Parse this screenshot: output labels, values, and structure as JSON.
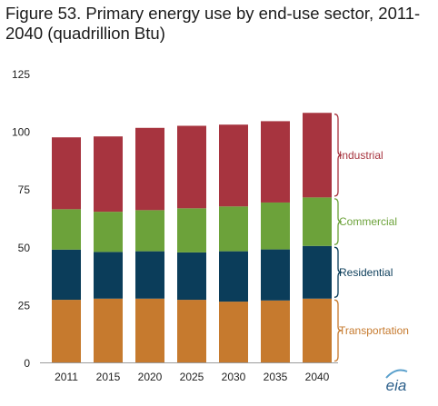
{
  "figure_title": "Figure 53. Primary energy use by end-use sector, 2011-2040 (quadrillion Btu)",
  "logo_text": "eia",
  "colors": {
    "transportation": "#c67a2e",
    "residential": "#0b3d5a",
    "commercial": "#6ca23a",
    "industrial": "#a7343f",
    "axis": "#9a9a9a",
    "label_text": "#222222"
  },
  "chart_data": {
    "type": "bar",
    "stacked": true,
    "title": "Figure 53. Primary energy use by end-use sector, 2011-2040 (quadrillion Btu)",
    "xlabel": "",
    "ylabel": "",
    "categories": [
      "2011",
      "2015",
      "2020",
      "2025",
      "2030",
      "2035",
      "2040"
    ],
    "ylim": [
      0,
      125
    ],
    "yticks": [
      0,
      25,
      50,
      75,
      100,
      125
    ],
    "grid": false,
    "legend": "right (bracketed labels)",
    "series": [
      {
        "name": "Transportation",
        "color_key": "transportation",
        "values": [
          27.1,
          27.6,
          27.6,
          27.1,
          26.3,
          26.8,
          27.6
        ]
      },
      {
        "name": "Residential",
        "color_key": "residential",
        "values": [
          21.7,
          20.2,
          20.5,
          20.5,
          21.8,
          22.1,
          22.8
        ]
      },
      {
        "name": "Commercial",
        "color_key": "commercial",
        "values": [
          17.5,
          17.4,
          17.8,
          19.1,
          19.4,
          20.3,
          21.0
        ]
      },
      {
        "name": "Industrial",
        "color_key": "industrial",
        "values": [
          31.1,
          32.6,
          35.6,
          35.7,
          35.4,
          35.2,
          36.6
        ]
      }
    ]
  }
}
